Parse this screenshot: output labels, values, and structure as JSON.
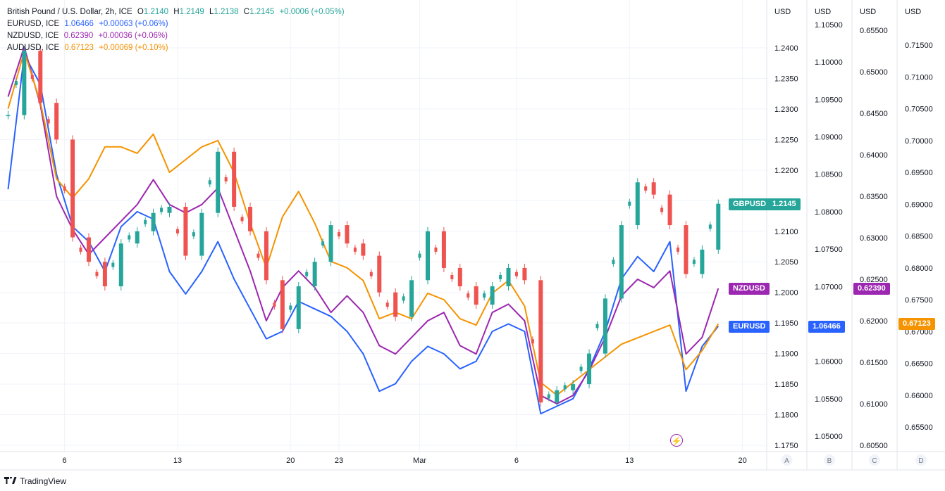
{
  "legend": {
    "main": {
      "symbol": "British Pound / U.S. Dollar, 2h, ICE",
      "o_label": "O",
      "o": "1.2140",
      "h_label": "H",
      "h": "1.2149",
      "l_label": "L",
      "l": "1.2138",
      "c_label": "C",
      "c": "1.2145",
      "change": "+0.0006 (+0.05%)"
    },
    "comparisons": [
      {
        "symbol": "EURUSD, ICE",
        "value": "1.06466",
        "change": "+0.00063 (+0.06%)",
        "color": "#2962ff"
      },
      {
        "symbol": "NZDUSD, ICE",
        "value": "0.62390",
        "change": "+0.00036 (+0.06%)",
        "color": "#9c27b0"
      },
      {
        "symbol": "AUDUSD, ICE",
        "value": "0.67123",
        "change": "+0.00069 (+0.10%)",
        "color": "#f59300"
      }
    ]
  },
  "colors": {
    "up": "#26a69a",
    "down": "#ef5350",
    "eurusd": "#2962ff",
    "nzdusd": "#9c27b0",
    "audusd": "#f59300",
    "grid": "#f0f3fa",
    "axis_text": "#131722"
  },
  "brand": "TradingView",
  "scales": [
    {
      "id": "A",
      "unit": "USD",
      "ticks": [
        "1.2400",
        "1.2350",
        "1.2300",
        "1.2250",
        "1.2200",
        "1.2150",
        "1.2100",
        "1.2050",
        "1.2000",
        "1.1950",
        "1.1900",
        "1.1850",
        "1.1800",
        "1.1750"
      ],
      "min": 1.175,
      "max": 1.24
    },
    {
      "id": "B",
      "unit": "USD",
      "ticks": [
        "1.10500",
        "1.10000",
        "1.09500",
        "1.09000",
        "1.08500",
        "1.08000",
        "1.07500",
        "1.07000",
        "1.06500",
        "1.06000",
        "1.05500",
        "1.05000"
      ],
      "min": 1.05,
      "max": 1.105
    },
    {
      "id": "C",
      "unit": "USD",
      "ticks": [
        "0.65500",
        "0.65000",
        "0.64500",
        "0.64000",
        "0.63500",
        "0.63000",
        "0.62500",
        "0.62000",
        "0.61500",
        "0.61000",
        "0.60500"
      ],
      "min": 0.605,
      "max": 0.655
    },
    {
      "id": "D",
      "unit": "USD",
      "ticks": [
        "0.71500",
        "0.71000",
        "0.70500",
        "0.70000",
        "0.69500",
        "0.69000",
        "0.68500",
        "0.68000",
        "0.67500",
        "0.67000",
        "0.66500",
        "0.66000",
        "0.65500"
      ],
      "min": 0.655,
      "max": 0.715
    }
  ],
  "price_tags": [
    {
      "name": "GBPUSD",
      "value": "1.2145",
      "color": "#26a69a",
      "axis": "A"
    },
    {
      "name": "NZDUSD",
      "value": "0.62390",
      "color": "#9c27b0",
      "axis": "C"
    },
    {
      "name": "EURUSD",
      "value": "1.06466",
      "color": "#2962ff",
      "axis": "B"
    },
    {
      "name": "AUDUSD",
      "value": "0.67123",
      "color": "#f59300",
      "axis": "D"
    }
  ],
  "chart_data": {
    "type": "line",
    "x_ticks": [
      "6",
      "13",
      "20",
      "23",
      "Mar",
      "6",
      "13",
      "20"
    ],
    "x_tick_pos": [
      6.0,
      13.0,
      20.0,
      23.0,
      28.0,
      34.0,
      41.0,
      48.0
    ],
    "x": [
      2.5,
      3.5,
      4.5,
      5.5,
      6.5,
      7.5,
      8.5,
      9.5,
      10.5,
      11.5,
      12.5,
      13.5,
      14.5,
      15.5,
      16.5,
      17.5,
      18.5,
      19.5,
      20.5,
      21.5,
      22.5,
      23.5,
      24.5,
      25.5,
      26.5,
      27.5,
      28.5,
      29.5,
      30.5,
      31.5,
      32.5,
      33.5,
      34.5,
      35.5,
      36.5,
      37.5,
      38.5,
      39.5,
      40.5,
      41.5,
      42.5,
      43.5,
      44.5,
      45.5,
      46.5
    ],
    "series": [
      {
        "name": "GBPUSD",
        "axis": "A",
        "style": "candles",
        "values": [
          1.229,
          1.2395,
          1.231,
          1.225,
          1.209,
          1.205,
          1.201,
          1.208,
          1.21,
          1.213,
          1.214,
          1.206,
          1.213,
          1.223,
          1.214,
          1.21,
          1.202,
          1.194,
          1.201,
          1.205,
          1.211,
          1.208,
          1.206,
          1.2,
          1.196,
          1.202,
          1.21,
          1.204,
          1.201,
          1.198,
          1.201,
          1.204,
          1.202,
          1.182,
          1.184,
          1.185,
          1.19,
          1.199,
          1.211,
          1.218,
          1.216,
          1.211,
          1.203,
          1.207,
          1.2145
        ]
      },
      {
        "name": "EURUSD",
        "axis": "B",
        "style": "line",
        "values": [
          1.083,
          1.101,
          1.097,
          1.085,
          1.078,
          1.076,
          1.072,
          1.078,
          1.08,
          1.079,
          1.072,
          1.069,
          1.072,
          1.076,
          1.071,
          1.067,
          1.063,
          1.064,
          1.068,
          1.067,
          1.066,
          1.064,
          1.061,
          1.056,
          1.057,
          1.06,
          1.062,
          1.061,
          1.059,
          1.06,
          1.064,
          1.065,
          1.064,
          1.053,
          1.054,
          1.055,
          1.059,
          1.064,
          1.071,
          1.074,
          1.072,
          1.076,
          1.056,
          1.062,
          1.0647
        ]
      },
      {
        "name": "NZDUSD",
        "axis": "C",
        "style": "line",
        "values": [
          0.647,
          0.653,
          0.646,
          0.635,
          0.631,
          0.628,
          0.63,
          0.632,
          0.634,
          0.637,
          0.634,
          0.633,
          0.634,
          0.636,
          0.631,
          0.626,
          0.62,
          0.624,
          0.626,
          0.624,
          0.621,
          0.623,
          0.621,
          0.617,
          0.616,
          0.618,
          0.62,
          0.621,
          0.617,
          0.616,
          0.621,
          0.622,
          0.62,
          0.611,
          0.61,
          0.611,
          0.614,
          0.618,
          0.623,
          0.625,
          0.624,
          0.626,
          0.616,
          0.618,
          0.6239
        ]
      },
      {
        "name": "AUDUSD",
        "axis": "D",
        "style": "line",
        "values": [
          0.705,
          0.714,
          0.706,
          0.694,
          0.691,
          0.694,
          0.699,
          0.699,
          0.698,
          0.701,
          0.695,
          0.697,
          0.699,
          0.7,
          0.695,
          0.687,
          0.68,
          0.688,
          0.692,
          0.687,
          0.681,
          0.68,
          0.678,
          0.672,
          0.673,
          0.672,
          0.676,
          0.675,
          0.672,
          0.671,
          0.676,
          0.678,
          0.674,
          0.662,
          0.66,
          0.662,
          0.664,
          0.666,
          0.668,
          0.669,
          0.67,
          0.671,
          0.664,
          0.667,
          0.6712
        ]
      }
    ]
  }
}
